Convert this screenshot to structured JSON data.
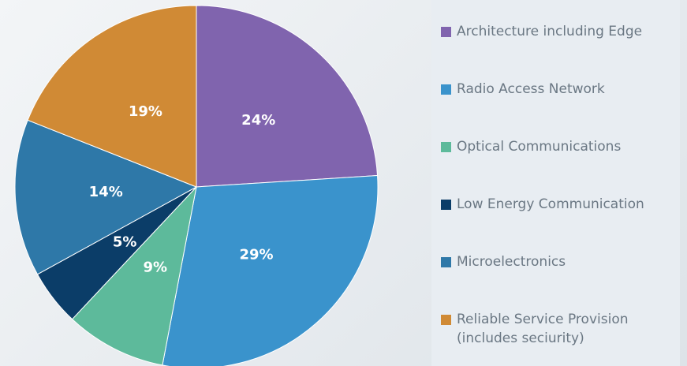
{
  "chart_data": {
    "type": "pie",
    "categories": [
      "Architecture including Edge",
      "Radio Access Network",
      "Optical Communications",
      "Low Energy Communication",
      "Microelectronics",
      "Reliable Service Provision (includes seciurity)"
    ],
    "values": [
      24,
      29,
      9,
      5,
      14,
      19
    ],
    "value_labels": [
      "24%",
      "29%",
      "9%",
      "5%",
      "14%",
      "19%"
    ],
    "colors": [
      "#8064ae",
      "#3a93cc",
      "#5dba9b",
      "#0b3d68",
      "#2e78a8",
      "#d08a35"
    ],
    "legend": "right"
  }
}
